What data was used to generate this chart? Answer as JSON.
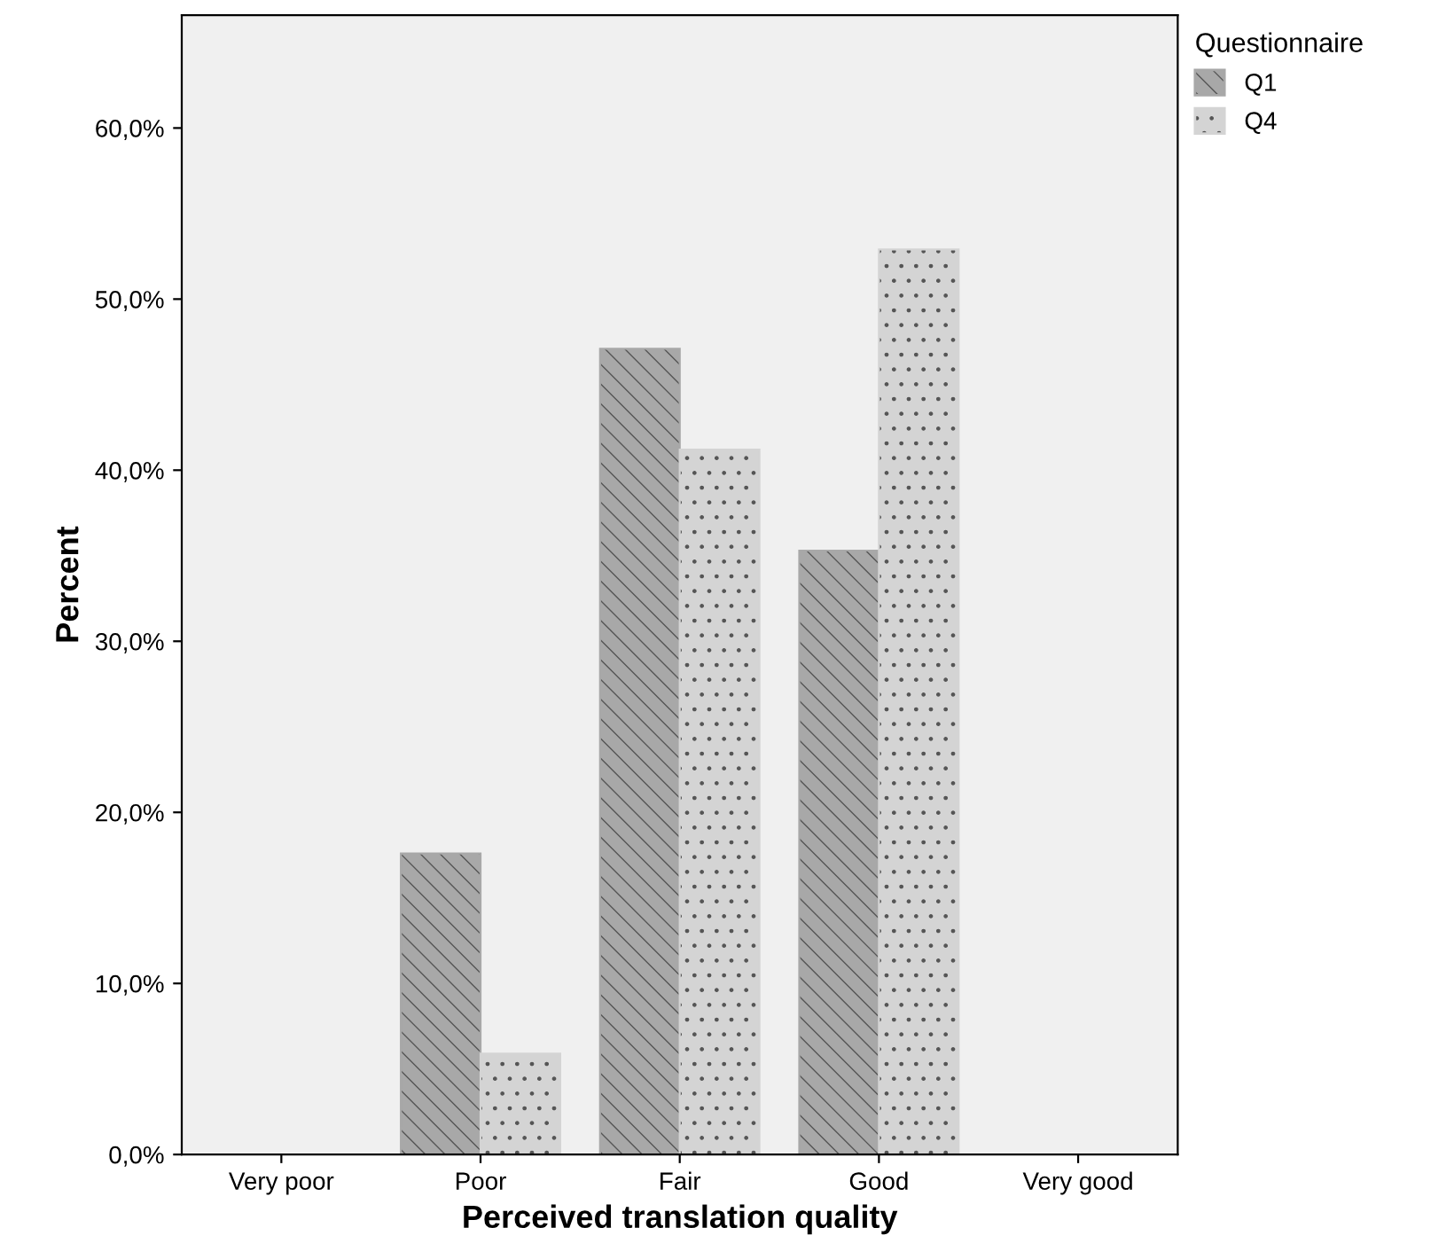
{
  "chart_data": {
    "type": "bar",
    "xlabel": "Perceived translation quality",
    "ylabel": "Percent",
    "legend_title": "Questionnaire",
    "categories": [
      "Very poor",
      "Poor",
      "Fair",
      "Good",
      "Very good"
    ],
    "series": [
      {
        "name": "Q1",
        "color": "#a8a8a8",
        "values": [
          0,
          17.6,
          47.1,
          35.3,
          0
        ]
      },
      {
        "name": "Q4",
        "color": "#d4d4d4",
        "values": [
          0,
          5.9,
          41.2,
          52.9,
          0
        ]
      }
    ],
    "ylim": [
      0,
      66.6
    ],
    "yticks": [
      {
        "value": 0,
        "label": "0,0%"
      },
      {
        "value": 10,
        "label": "10,0%"
      },
      {
        "value": 20,
        "label": "20,0%"
      },
      {
        "value": 30,
        "label": "30,0%"
      },
      {
        "value": 40,
        "label": "40,0%"
      },
      {
        "value": 50,
        "label": "50,0%"
      },
      {
        "value": 60,
        "label": "60,0%"
      }
    ],
    "grid": false,
    "legend": "top right"
  }
}
